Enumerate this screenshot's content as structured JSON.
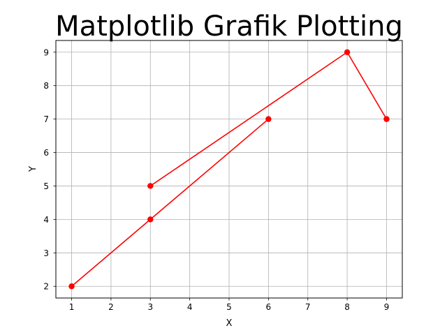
{
  "chart_data": {
    "type": "line",
    "title": "Matplotlib Grafik Plotting",
    "xlabel": "X",
    "ylabel": "Y",
    "xlim": [
      0.6,
      9.4
    ],
    "ylim": [
      1.65,
      9.35
    ],
    "xticks": [
      1,
      2,
      3,
      4,
      5,
      6,
      7,
      8,
      9
    ],
    "yticks": [
      2,
      3,
      4,
      5,
      6,
      7,
      8,
      9
    ],
    "grid": true,
    "series": [
      {
        "x": [
          1,
          3,
          6
        ],
        "y": [
          2,
          4,
          7
        ],
        "color": "#ff0000",
        "marker": "circle"
      },
      {
        "x": [
          3,
          8,
          9
        ],
        "y": [
          5,
          9,
          7
        ],
        "color": "#ff0000",
        "marker": "circle"
      }
    ]
  }
}
